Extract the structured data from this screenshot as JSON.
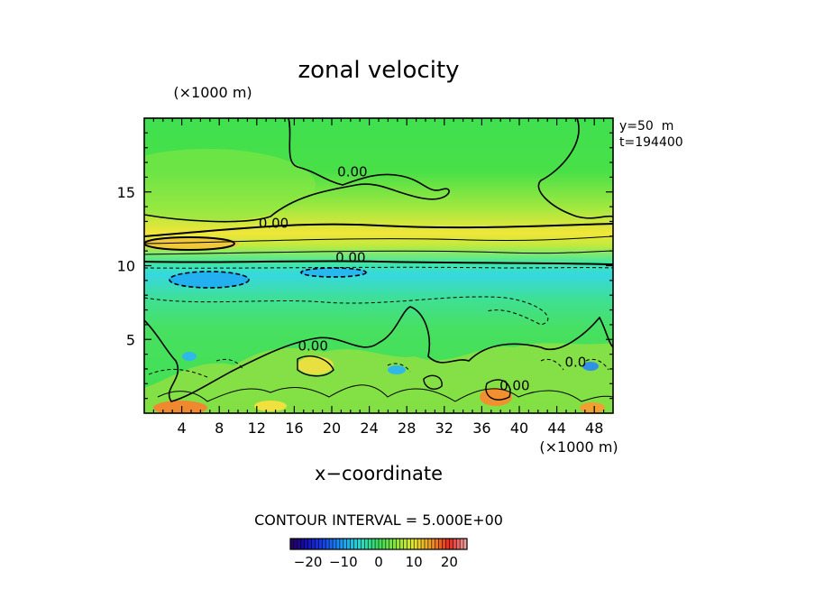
{
  "chart_data": {
    "type": "heatmap",
    "title": "zonal velocity",
    "xlabel": "x−coordinate",
    "x_unit": "(×1000 m)",
    "y_unit": "(×1000 m)",
    "xlim": [
      0,
      50
    ],
    "ylim": [
      0,
      20
    ],
    "x_ticks": [
      4,
      8,
      12,
      16,
      20,
      24,
      28,
      32,
      36,
      40,
      44,
      48
    ],
    "x_tick_labels": [
      "4",
      "8",
      "12",
      "16",
      "20",
      "24",
      "28",
      "32",
      "36",
      "40",
      "44",
      "48"
    ],
    "y_ticks": [
      5,
      10,
      15
    ],
    "y_tick_labels": [
      "5",
      "10",
      "15"
    ],
    "info": [
      "y=50  m",
      "t=194400"
    ],
    "contour_interval_label": "CONTOUR INTERVAL = 5.000E+00",
    "contour_labels": [
      {
        "text": "0.00",
        "x": 22.2,
        "y": 16.3
      },
      {
        "text": "0.00",
        "x": 13.8,
        "y": 12.8
      },
      {
        "text": "0.00",
        "x": 22.0,
        "y": 10.5
      },
      {
        "text": "0.00",
        "x": 18.0,
        "y": 4.5
      },
      {
        "text": "0.00",
        "x": 39.5,
        "y": 1.8
      },
      {
        "text": "0.0",
        "x": 46.0,
        "y": 3.4
      }
    ],
    "colorbar": {
      "min": -25,
      "max": 25,
      "tick_values": [
        -20,
        -10,
        0,
        10,
        20
      ],
      "tick_labels": [
        "−20",
        "−10",
        "0",
        "10",
        "20"
      ]
    },
    "grid": false
  }
}
